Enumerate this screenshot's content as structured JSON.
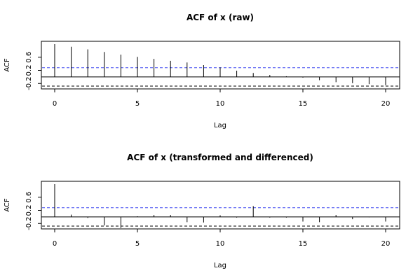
{
  "chart_data": [
    {
      "type": "bar",
      "title": "ACF of x (raw)",
      "xlabel": "Lag",
      "ylabel": "ACF",
      "xlim": [
        0,
        20
      ],
      "ylim": [
        -0.28,
        1.0
      ],
      "x_ticks": [
        "0",
        "5",
        "10",
        "15",
        "20"
      ],
      "y_ticks": [
        "-0.2",
        "0.2",
        "0.6"
      ],
      "confidence_band": [
        0.28,
        -0.28
      ],
      "band_colors": [
        "#3b46f0",
        "#000000"
      ],
      "lags": [
        0,
        1,
        2,
        3,
        4,
        5,
        6,
        7,
        8,
        9,
        10,
        11,
        12,
        13,
        14,
        15,
        16,
        17,
        18,
        19,
        20
      ],
      "values": [
        1.0,
        0.92,
        0.84,
        0.76,
        0.68,
        0.61,
        0.55,
        0.49,
        0.44,
        0.36,
        0.29,
        0.19,
        0.12,
        0.06,
        0.02,
        -0.02,
        -0.1,
        -0.16,
        -0.19,
        -0.22,
        -0.25
      ]
    },
    {
      "type": "bar",
      "title": "ACF of x (transformed and differenced)",
      "xlabel": "Lag",
      "ylabel": "ACF",
      "xlim": [
        0,
        20
      ],
      "ylim": [
        -0.28,
        1.0
      ],
      "x_ticks": [
        "0",
        "5",
        "10",
        "15",
        "20"
      ],
      "y_ticks": [
        "-0.2",
        "0.2",
        "0.6"
      ],
      "confidence_band": [
        0.28,
        -0.28
      ],
      "band_colors": [
        "#3b46f0",
        "#000000"
      ],
      "lags": [
        0,
        1,
        2,
        3,
        4,
        5,
        6,
        7,
        8,
        9,
        10,
        11,
        12,
        13,
        14,
        15,
        16,
        17,
        18,
        19,
        20
      ],
      "values": [
        1.0,
        0.07,
        -0.03,
        -0.26,
        -0.34,
        0.02,
        0.06,
        0.06,
        -0.16,
        -0.17,
        0.05,
        -0.02,
        0.33,
        -0.02,
        -0.02,
        -0.14,
        -0.16,
        0.06,
        -0.07,
        -0.01,
        -0.14
      ]
    }
  ]
}
